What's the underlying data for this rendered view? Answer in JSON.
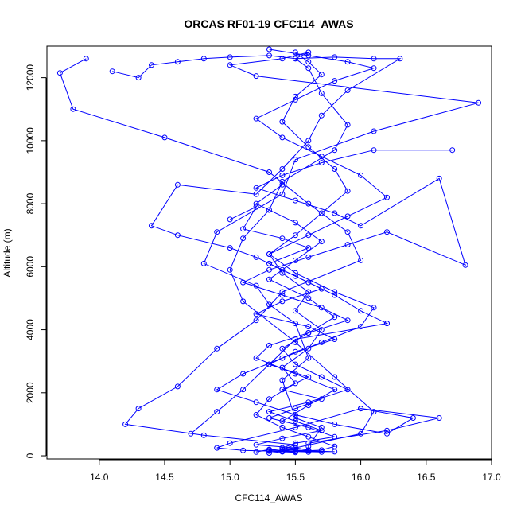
{
  "chart_data": {
    "type": "line",
    "title": "ORCAS RF01-19 CFC114_AWAS",
    "xlabel": "CFC114_AWAS",
    "ylabel": "Altitude (m)",
    "xlim": [
      13.6,
      17.0
    ],
    "ylim": [
      -100,
      13000
    ],
    "xticks": [
      14.0,
      14.5,
      15.0,
      15.5,
      16.0,
      16.5,
      17.0
    ],
    "xtick_labels": [
      "14.0",
      "14.5",
      "15.0",
      "15.5",
      "16.0",
      "16.5",
      "17.0"
    ],
    "yticks": [
      0,
      2000,
      4000,
      6000,
      8000,
      10000,
      12000
    ],
    "ytick_labels": [
      "0",
      "2000",
      "4000",
      "6000",
      "8000",
      "10000",
      "12000"
    ],
    "grid": false,
    "marker": "open-circle",
    "series_color": "#0000ff",
    "series": [
      {
        "x": [
          15.2,
          15.3,
          15.3,
          15.4,
          15.5,
          15.5,
          15.6,
          15.6,
          15.7,
          15.5,
          15.4,
          15.6,
          15.5,
          15.3,
          15.2,
          14.8,
          14.9,
          15.4,
          15.5,
          16.1,
          16.9,
          15.2,
          15.0,
          15.4,
          15.6,
          15.5,
          15.6,
          15.7,
          15.9,
          15.8,
          15.4,
          15.3,
          15.1,
          15.0,
          15.1,
          15.5,
          15.8,
          16.1,
          16.0,
          15.5,
          15.3,
          15.5,
          15.7
        ],
        "y": [
          120,
          200,
          90,
          130,
          160,
          250,
          180,
          300,
          900,
          1200,
          2400,
          3100,
          4200,
          4800,
          5400,
          6100,
          7100,
          8300,
          9400,
          10300,
          11200,
          12050,
          12400,
          12600,
          12800,
          12600,
          12300,
          11500,
          10500,
          9700,
          8700,
          7800,
          6900,
          5900,
          4900,
          3600,
          2500,
          1400,
          700,
          250,
          180,
          140,
          120
        ]
      },
      {
        "x": [
          13.9,
          13.7,
          13.8,
          14.5,
          15.3,
          15.6,
          15.9,
          16.0,
          15.4,
          15.2,
          14.9,
          14.6,
          14.3,
          14.2,
          14.8,
          15.5,
          15.4,
          15.6,
          15.8,
          15.4,
          15.1,
          14.9,
          15.0,
          15.5,
          16.0,
          16.6,
          16.2,
          15.6
        ],
        "y": [
          12600,
          12150,
          11000,
          10100,
          9000,
          8000,
          7100,
          6200,
          5200,
          4300,
          3400,
          2200,
          1500,
          1000,
          650,
          350,
          200,
          160,
          130,
          140,
          170,
          250,
          400,
          900,
          1500,
          1200,
          800,
          400
        ]
      },
      {
        "x": [
          14.1,
          14.3,
          14.4,
          14.6,
          14.8,
          15.0,
          15.3,
          15.5,
          15.8,
          16.1,
          16.3,
          15.9,
          15.7,
          15.6,
          15.4,
          15.2,
          14.6,
          14.4,
          14.6,
          15.0,
          15.2,
          15.4,
          15.6,
          15.8,
          16.0,
          16.2,
          15.5,
          15.3,
          15.1,
          14.9,
          14.7
        ],
        "y": [
          12200,
          12000,
          12400,
          12500,
          12600,
          12650,
          12700,
          12600,
          12650,
          12600,
          12600,
          11600,
          10800,
          10000,
          9100,
          8300,
          8600,
          7300,
          7000,
          6600,
          6300,
          5900,
          5500,
          5100,
          4600,
          4200,
          3700,
          2900,
          2100,
          1400,
          700
        ]
      },
      {
        "x": [
          15.5,
          15.6,
          15.7,
          15.5,
          15.4,
          15.6,
          15.8,
          15.9,
          15.7,
          15.5,
          15.3,
          15.4,
          15.6,
          15.5,
          15.7,
          15.6,
          15.4,
          15.5,
          15.3,
          15.2,
          15.4,
          15.6,
          15.8,
          15.7,
          15.5,
          15.6,
          15.4,
          15.5
        ],
        "y": [
          12800,
          12500,
          12100,
          11400,
          10600,
          9800,
          9100,
          8400,
          7700,
          7000,
          6400,
          5800,
          5200,
          4600,
          4000,
          3400,
          2800,
          2300,
          1800,
          1300,
          900,
          600,
          300,
          180,
          140,
          120,
          160,
          200
        ]
      },
      {
        "x": [
          16.7,
          16.1,
          15.7,
          15.4,
          15.2,
          15.5,
          15.8,
          16.0,
          16.6,
          16.8,
          16.2,
          15.9,
          15.6,
          15.3,
          15.1,
          15.4,
          15.7,
          15.9,
          15.6,
          15.3,
          15.2,
          15.5,
          15.8,
          15.6,
          15.4
        ],
        "y": [
          9700,
          9700,
          9300,
          8900,
          8500,
          8100,
          7700,
          7300,
          8800,
          6050,
          7100,
          6700,
          6300,
          5900,
          5500,
          5100,
          4700,
          4300,
          3900,
          3500,
          3100,
          2600,
          2100,
          1600,
          1100
        ]
      },
      {
        "x": [
          15.3,
          15.6,
          15.9,
          16.1,
          15.8,
          15.5,
          15.2,
          15.4,
          15.7,
          16.0,
          16.2,
          15.9,
          15.6,
          15.3,
          15.5,
          15.8,
          16.1,
          16.0,
          15.7,
          15.4,
          15.1,
          14.9,
          15.2,
          15.5,
          15.8,
          16.2,
          16.4,
          16.0
        ],
        "y": [
          12900,
          12700,
          12500,
          12300,
          11900,
          11300,
          10700,
          10100,
          9500,
          8900,
          8200,
          7600,
          7000,
          6400,
          5800,
          5200,
          4700,
          4100,
          3600,
          3100,
          2600,
          2100,
          1700,
          1300,
          1000,
          700,
          1200,
          1500
        ]
      },
      {
        "x": [
          15.4,
          15.2,
          15.5,
          15.7,
          15.5,
          15.3,
          15.6,
          15.8,
          15.6,
          15.4,
          15.5,
          15.7,
          15.9,
          15.6,
          15.3,
          15.5,
          15.7,
          15.4,
          15.2,
          15.5,
          15.6,
          15.4,
          15.5,
          15.3
        ],
        "y": [
          8600,
          8000,
          7400,
          6800,
          6200,
          5600,
          5000,
          4400,
          3900,
          3400,
          2900,
          2500,
          2100,
          1700,
          1400,
          1100,
          800,
          550,
          350,
          250,
          180,
          130,
          110,
          150
        ]
      },
      {
        "x": [
          15.0,
          15.2,
          15.1,
          15.4,
          15.6,
          15.3,
          15.5,
          15.7,
          15.4,
          15.2,
          15.6,
          15.8,
          15.5,
          15.3,
          15.6,
          15.4,
          15.7,
          15.5,
          15.3,
          15.6,
          15.8,
          15.5,
          15.4
        ],
        "y": [
          7500,
          7900,
          7200,
          6900,
          6600,
          6100,
          5700,
          5300,
          4900,
          4500,
          4100,
          3700,
          3300,
          2900,
          2500,
          2100,
          1800,
          1500,
          1200,
          900,
          600,
          400,
          250
        ]
      }
    ]
  }
}
